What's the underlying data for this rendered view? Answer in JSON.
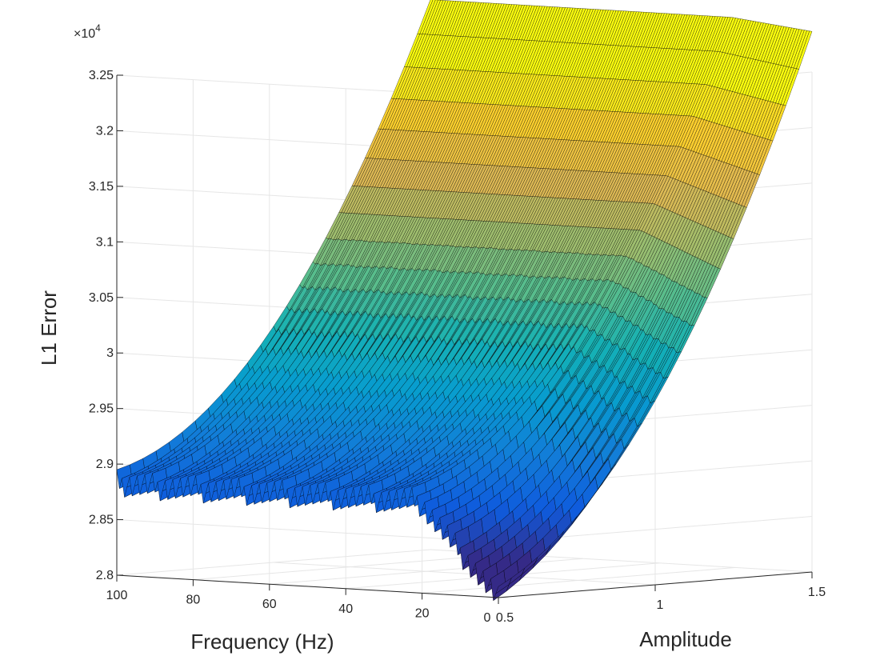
{
  "chart_data": {
    "type": "surface3d",
    "title": "",
    "zlabel": "L1 Error",
    "xlabel": "Frequency (Hz)",
    "ylabel": "Amplitude",
    "z_multiplier_label": "×10",
    "z_multiplier_exponent": "4",
    "z_ticks": [
      "2.8",
      "2.85",
      "2.9",
      "2.95",
      "3",
      "3.05",
      "3.1",
      "3.15",
      "3.2",
      "3.25"
    ],
    "freq_ticks": [
      "100",
      "80",
      "60",
      "40",
      "20",
      "0"
    ],
    "amp_ticks": [
      "0.5",
      "1",
      "1.5"
    ],
    "zlim": [
      28000,
      32500
    ],
    "freq_range": [
      0,
      100
    ],
    "amp_range": [
      0.5,
      1.5
    ],
    "colormap": "parula",
    "colors": {
      "low": "#352a87",
      "mid": "#21b2a3",
      "high": "#f9fb0e",
      "edge": "#000000",
      "grid": "#e6e6e6",
      "axis": "#262626"
    },
    "grid": true,
    "surface_description_points": {
      "amplitude_0_5_min_near_freq_0": 28270,
      "low_amplitude_values_freq_10_to_100": [
        29000,
        29500
      ],
      "amplitude_1_5_near_freq_0": 32300,
      "amplitude_1_5_near_freq_100": 32400,
      "high_amplitude_band_range": [
        31500,
        32400
      ]
    }
  }
}
